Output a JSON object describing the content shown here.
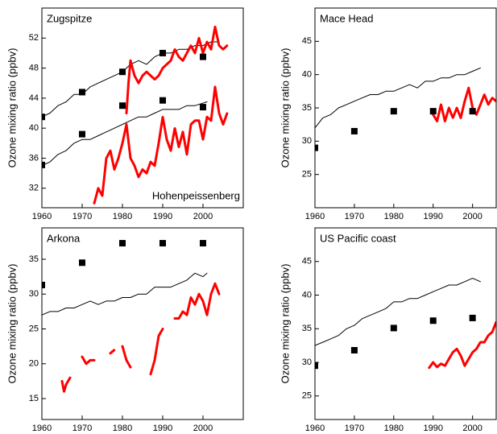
{
  "chart_data": [
    {
      "type": "line",
      "annotations": [
        "Zugspitze",
        "Hohenpeissenberg"
      ],
      "ylabel": "Ozone mixing ratio (ppbv)",
      "xlim": [
        1960,
        2010
      ],
      "ylim": [
        29.4,
        56
      ],
      "xticks": [
        1960,
        1970,
        1980,
        1990,
        2000
      ],
      "yticks": [
        32,
        36,
        40,
        44,
        48,
        52
      ],
      "series": [
        {
          "style": "line",
          "color": "#000000",
          "x": [
            1960,
            1962,
            1964,
            1966,
            1968,
            1970,
            1972,
            1974,
            1976,
            1978,
            1980,
            1982,
            1984,
            1986,
            1988,
            1990,
            1992,
            1994,
            1996,
            1998,
            2000,
            2002,
            2004
          ],
          "values": [
            41.5,
            42,
            43,
            43.5,
            44.5,
            44.5,
            45.5,
            46,
            46.5,
            47,
            47.5,
            48.5,
            49,
            48.5,
            49.5,
            50,
            50,
            50.5,
            50.5,
            51,
            51,
            51.5,
            51.5
          ]
        },
        {
          "style": "line",
          "color": "#000000",
          "x": [
            1960,
            1962,
            1964,
            1966,
            1968,
            1970,
            1972,
            1974,
            1976,
            1978,
            1980,
            1982,
            1984,
            1986,
            1988,
            1990,
            1992,
            1994,
            1996,
            1998,
            2001
          ],
          "values": [
            35,
            35.5,
            36.5,
            37,
            38,
            38.5,
            38.5,
            39,
            39.5,
            40,
            40.5,
            41,
            41.5,
            41.5,
            42,
            42.5,
            42.5,
            42.5,
            43,
            43,
            43.5
          ]
        },
        {
          "style": "dots",
          "color": "#ff0000",
          "x": [
            1981,
            1981.5,
            1982,
            1983,
            1984,
            1985,
            1986,
            1987,
            1988,
            1989,
            1990,
            1991,
            1992,
            1993,
            1994,
            1995,
            1996,
            1997,
            1998,
            1999,
            2000,
            2001,
            2002,
            2003,
            2004,
            2005,
            2006
          ],
          "values": [
            42,
            46,
            49,
            47,
            46,
            47,
            47.5,
            47,
            46.5,
            47,
            48,
            48.5,
            49,
            50.5,
            49.5,
            49,
            50,
            51,
            50,
            52,
            50,
            51.5,
            50.5,
            53.5,
            51,
            50.5,
            51
          ]
        },
        {
          "style": "dots",
          "color": "#ff0000",
          "x": [
            1973,
            1974,
            1975,
            1976,
            1977,
            1978,
            1979,
            1980,
            1981,
            1982,
            1983,
            1984,
            1985,
            1986,
            1987,
            1988,
            1989,
            1990,
            1991,
            1992,
            1993,
            1994,
            1995,
            1996,
            1997,
            1998,
            1999,
            2000,
            2001,
            2002,
            2003,
            2004,
            2005,
            2006
          ],
          "values": [
            30,
            32,
            31,
            36,
            37,
            34.5,
            36,
            38,
            40.5,
            36,
            35,
            33.5,
            34.5,
            34,
            35.5,
            35,
            38,
            41.5,
            38.5,
            37,
            40,
            37.5,
            39.5,
            36.5,
            40.5,
            41,
            41,
            38.5,
            41.5,
            41,
            45.5,
            42,
            40.5,
            42
          ]
        },
        {
          "style": "squares",
          "color": "#000000",
          "x": [
            1960,
            1970,
            1980,
            1990,
            2000
          ],
          "values": [
            41.5,
            44.8,
            47.5,
            50,
            49.5
          ]
        },
        {
          "style": "squares",
          "color": "#000000",
          "x": [
            1960,
            1970,
            1980,
            1990,
            2000
          ],
          "values": [
            35.1,
            39.2,
            43,
            43.7,
            42.8
          ]
        }
      ]
    },
    {
      "type": "line",
      "annotations": [
        "Mace Head"
      ],
      "ylabel": "Ozone mixing ratio (ppbv)",
      "xlim": [
        1960,
        2006
      ],
      "ylim": [
        20,
        50
      ],
      "xticks": [
        1960,
        1970,
        1980,
        1990,
        2000
      ],
      "yticks": [
        25,
        30,
        35,
        40,
        45
      ],
      "series": [
        {
          "style": "line",
          "color": "#000000",
          "x": [
            1960,
            1962,
            1964,
            1966,
            1968,
            1970,
            1972,
            1974,
            1976,
            1978,
            1980,
            1982,
            1984,
            1986,
            1988,
            1990,
            1992,
            1994,
            1996,
            1998,
            2000,
            2002
          ],
          "values": [
            32,
            33.5,
            34,
            35,
            35.5,
            36,
            36.5,
            37,
            37,
            37.5,
            37.5,
            38,
            38.5,
            38,
            39,
            39,
            39.5,
            39.5,
            40,
            40,
            40.5,
            41
          ]
        },
        {
          "style": "dots",
          "color": "#ff0000",
          "x": [
            1990,
            1991,
            1992,
            1993,
            1994,
            1995,
            1996,
            1997,
            1998,
            1999,
            2000,
            2001,
            2002,
            2003,
            2004,
            2005,
            2006
          ],
          "values": [
            34,
            33,
            35.5,
            33,
            35,
            33.5,
            35,
            33.5,
            36,
            38,
            35,
            34,
            35.5,
            37,
            35.5,
            36.5,
            36
          ]
        },
        {
          "style": "squares",
          "color": "#000000",
          "x": [
            1960,
            1970,
            1980,
            1990,
            2000
          ],
          "values": [
            29,
            31.5,
            34.5,
            34.5,
            34.5
          ]
        }
      ]
    },
    {
      "type": "line",
      "annotations": [
        "Arkona"
      ],
      "ylabel": "Ozone mixing ratio (ppbv)",
      "xlim": [
        1960,
        2010
      ],
      "ylim": [
        12,
        39.5
      ],
      "xticks": [
        1960,
        1970,
        1980,
        1990,
        2000
      ],
      "yticks": [
        15,
        20,
        25,
        30,
        35
      ],
      "series": [
        {
          "style": "line",
          "color": "#000000",
          "x": [
            1960,
            1962,
            1964,
            1966,
            1968,
            1970,
            1972,
            1974,
            1976,
            1978,
            1980,
            1982,
            1984,
            1986,
            1988,
            1990,
            1992,
            1994,
            1996,
            1998,
            2000,
            2001
          ],
          "values": [
            27,
            27.5,
            27.5,
            28,
            28,
            28.5,
            29,
            28.5,
            29,
            29,
            29.5,
            29.5,
            30,
            30,
            31,
            31,
            31,
            31.5,
            32,
            33,
            32.5,
            33
          ]
        },
        {
          "style": "dots",
          "color": "#ff0000",
          "x": [
            1965,
            1965.5,
            1966,
            1967,
            1968,
            1970,
            1971,
            1972,
            1973,
            1974,
            1975,
            1976,
            1977,
            1978,
            1979,
            1980,
            1981,
            1982,
            1984,
            1986,
            1986.5,
            1987,
            1988,
            1989,
            1990,
            1991,
            1993,
            1994,
            1995,
            1996,
            1997,
            1998,
            1999,
            2000,
            2001,
            2002,
            2003,
            2004
          ],
          "values": [
            17.5,
            16,
            17,
            18,
            null,
            21,
            20,
            20.5,
            20.5,
            null,
            22.5,
            null,
            21.5,
            22,
            null,
            22.5,
            20.5,
            19.5,
            null,
            14.5,
            null,
            18.5,
            20.5,
            24,
            25,
            null,
            26.5,
            26.5,
            27.5,
            27,
            29.5,
            28.5,
            30,
            29,
            27,
            30,
            31.5,
            30
          ]
        },
        {
          "style": "squares",
          "color": "#000000",
          "x": [
            1960,
            1970,
            1980,
            1990,
            2000
          ],
          "values": [
            31.3,
            34.5,
            37.3,
            37.3,
            37.3
          ]
        }
      ]
    },
    {
      "type": "line",
      "annotations": [
        "US Pacific coast"
      ],
      "ylabel": "Ozone mixing ratio (ppbv)",
      "xlim": [
        1960,
        2006
      ],
      "ylim": [
        21.5,
        50
      ],
      "xticks": [
        1960,
        1970,
        1980,
        1990,
        2000
      ],
      "yticks": [
        25,
        30,
        35,
        40,
        45
      ],
      "series": [
        {
          "style": "line",
          "color": "#000000",
          "x": [
            1960,
            1962,
            1964,
            1966,
            1968,
            1970,
            1972,
            1974,
            1976,
            1978,
            1980,
            1982,
            1984,
            1986,
            1988,
            1990,
            1992,
            1994,
            1996,
            1998,
            2000,
            2002
          ],
          "values": [
            32.5,
            33,
            33.5,
            34,
            35,
            35.5,
            36.5,
            37,
            37.5,
            38,
            39,
            39,
            39.5,
            39.5,
            40,
            40.5,
            41,
            41.5,
            41.5,
            42,
            42.5,
            42
          ]
        },
        {
          "style": "dots",
          "color": "#ff0000",
          "x": [
            1989,
            1990,
            1991,
            1992,
            1993,
            1994,
            1995,
            1996,
            1997,
            1998,
            1999,
            2000,
            2001,
            2002,
            2003,
            2004,
            2005,
            2006
          ],
          "values": [
            29.2,
            30,
            29.3,
            29.8,
            29.5,
            30.5,
            31.5,
            32,
            31,
            29.5,
            30.5,
            31.5,
            32,
            33,
            33,
            34,
            34.5,
            36
          ]
        },
        {
          "style": "squares",
          "color": "#000000",
          "x": [
            1960,
            1970,
            1980,
            1990,
            2000
          ],
          "values": [
            29.5,
            31.8,
            35.1,
            36.2,
            36.6
          ]
        }
      ]
    }
  ]
}
